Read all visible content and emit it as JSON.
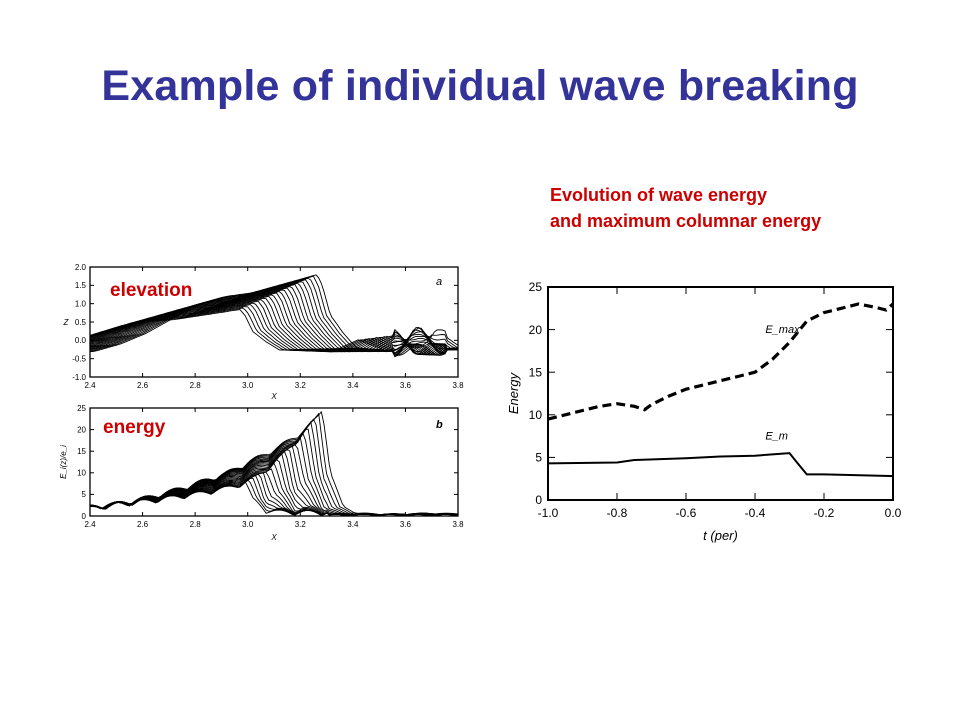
{
  "slide": {
    "title": "Example of individual wave breaking",
    "caption_line1": "Evolution of wave energy",
    "caption_line2": "and maximum columnar energy",
    "label_elevation": "elevation",
    "label_energy": "energy",
    "colors": {
      "title": "#333399",
      "labels": "#cc0000",
      "ink": "#000000"
    }
  },
  "chart_data": [
    {
      "type": "line",
      "panel_letter": "a",
      "xlabel": "X",
      "ylabel": "Z",
      "xlim": [
        2.4,
        3.8
      ],
      "ylim": [
        -1.0,
        2.0
      ],
      "x_ticks": [
        "2.4",
        "2.6",
        "2.8",
        "3.0",
        "3.2",
        "3.4",
        "3.6",
        "3.8"
      ],
      "y_ticks": [
        "2.0",
        "1.5",
        "1.0",
        "0.5",
        "0.0",
        "-0.5",
        "-1.0"
      ],
      "series_profile": {
        "x": [
          2.4,
          2.5,
          2.6,
          2.7,
          2.8,
          2.9,
          3.0,
          3.1,
          3.15,
          3.2,
          3.25,
          3.27,
          3.3,
          3.35,
          3.4,
          3.5,
          3.6,
          3.7,
          3.8
        ],
        "y": [
          -0.3,
          -0.1,
          0.2,
          0.6,
          1.0,
          1.2,
          1.3,
          1.5,
          1.6,
          1.7,
          1.8,
          1.5,
          0.7,
          0.2,
          -0.2,
          -0.25,
          -0.3,
          0.3,
          -0.2
        ]
      }
    },
    {
      "type": "line",
      "panel_letter": "b",
      "xlabel": "X",
      "ylabel": "E_i(z)/e_i",
      "xlim": [
        2.4,
        3.8
      ],
      "ylim": [
        0,
        25
      ],
      "x_ticks": [
        "2.4",
        "2.6",
        "2.8",
        "3.0",
        "3.2",
        "3.4",
        "3.6",
        "3.8"
      ],
      "y_ticks": [
        "25",
        "20",
        "15",
        "10",
        "5",
        "0"
      ],
      "series_profile": {
        "x": [
          2.4,
          2.5,
          2.6,
          2.7,
          2.8,
          2.9,
          3.0,
          3.1,
          3.15,
          3.2,
          3.25,
          3.27,
          3.3,
          3.35,
          3.4,
          3.5,
          3.6,
          3.7,
          3.8
        ],
        "y": [
          1,
          2,
          3,
          5,
          7,
          9,
          12,
          15,
          17,
          19,
          22,
          24,
          10,
          2,
          0.5,
          0.3,
          0.3,
          0.5,
          0.3
        ]
      }
    },
    {
      "type": "line",
      "xlabel": "t (per)",
      "ylabel": "Energy",
      "xlim": [
        -1.0,
        0.0
      ],
      "ylim": [
        0,
        25
      ],
      "x_ticks": [
        "-1.0",
        "-0.8",
        "-0.6",
        "-0.4",
        "-0.2",
        "0.0"
      ],
      "y_ticks": [
        "25",
        "20",
        "15",
        "10",
        "5",
        "0"
      ],
      "series": [
        {
          "name": "E_max",
          "style": "dashed",
          "x": [
            -1.0,
            -0.95,
            -0.9,
            -0.85,
            -0.8,
            -0.75,
            -0.72,
            -0.7,
            -0.65,
            -0.6,
            -0.55,
            -0.5,
            -0.45,
            -0.4,
            -0.35,
            -0.3,
            -0.25,
            -0.2,
            -0.15,
            -0.1,
            -0.05,
            -0.02,
            0.0
          ],
          "y": [
            9.5,
            10.0,
            10.5,
            11.0,
            11.3,
            11.0,
            10.6,
            11.2,
            12.2,
            13.0,
            13.5,
            14.0,
            14.5,
            15.0,
            16.5,
            18.5,
            21.0,
            22.0,
            22.5,
            23.0,
            22.6,
            22.3,
            23.0
          ]
        },
        {
          "name": "E_m",
          "style": "solid",
          "x": [
            -1.0,
            -0.8,
            -0.75,
            -0.6,
            -0.5,
            -0.4,
            -0.3,
            -0.28,
            -0.25,
            -0.2,
            0.0
          ],
          "y": [
            4.3,
            4.4,
            4.7,
            4.9,
            5.1,
            5.2,
            5.5,
            4.5,
            3.0,
            3.0,
            2.8
          ]
        }
      ]
    }
  ]
}
